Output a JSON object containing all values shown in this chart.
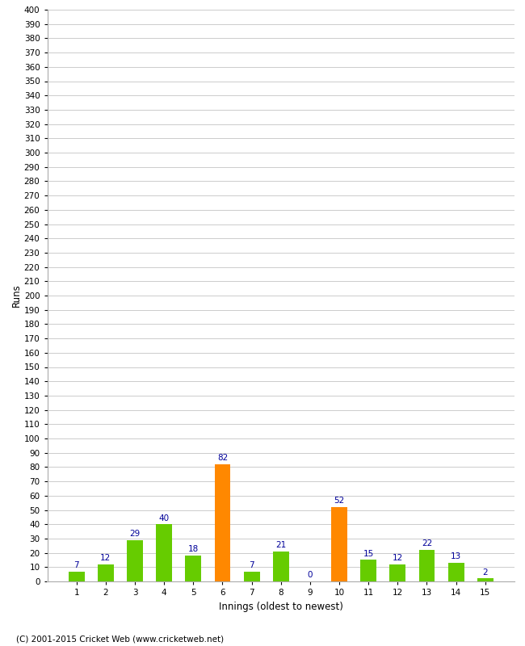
{
  "title": "",
  "xlabel": "Innings (oldest to newest)",
  "ylabel": "Runs",
  "categories": [
    1,
    2,
    3,
    4,
    5,
    6,
    7,
    8,
    9,
    10,
    11,
    12,
    13,
    14,
    15
  ],
  "values": [
    7,
    12,
    29,
    40,
    18,
    82,
    7,
    21,
    0,
    52,
    15,
    12,
    22,
    13,
    2
  ],
  "bar_colors": [
    "#66cc00",
    "#66cc00",
    "#66cc00",
    "#66cc00",
    "#66cc00",
    "#ff8800",
    "#66cc00",
    "#66cc00",
    "#66cc00",
    "#ff8800",
    "#66cc00",
    "#66cc00",
    "#66cc00",
    "#66cc00",
    "#66cc00"
  ],
  "label_color": "#000099",
  "background_color": "#ffffff",
  "grid_color": "#cccccc",
  "ylim": [
    0,
    400
  ],
  "ytick_step": 10,
  "copyright": "(C) 2001-2015 Cricket Web (www.cricketweb.net)",
  "label_fontsize": 7.5,
  "axis_label_fontsize": 8.5,
  "tick_fontsize": 7.5,
  "bar_width": 0.55
}
